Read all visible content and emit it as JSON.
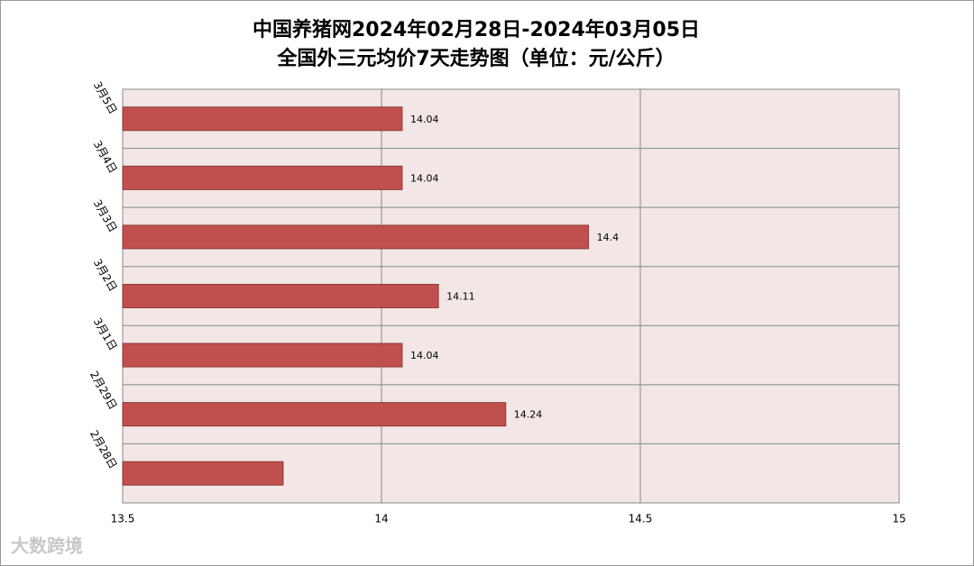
{
  "chart_data": {
    "type": "hbar",
    "title": [
      "中国养猪网2024年02月28日-2024年03月05日",
      "全国外三元均价7天走势图（单位：元/公斤）"
    ],
    "categories": [
      "3月5日",
      "3月4日",
      "3月3日",
      "3月2日",
      "3月1日",
      "2月29日",
      "2月28日"
    ],
    "values": [
      14.04,
      14.04,
      14.4,
      14.11,
      14.04,
      14.24,
      13.81
    ],
    "value_labels": [
      "14.04",
      "14.04",
      "14.4",
      "14.11",
      "14.04",
      "14.24",
      null
    ],
    "color": "#c0504d",
    "xlim": [
      13.5,
      15
    ],
    "xticks": [
      13.5,
      14,
      14.5,
      15
    ],
    "grid": true,
    "watermark": "大数跨境"
  }
}
